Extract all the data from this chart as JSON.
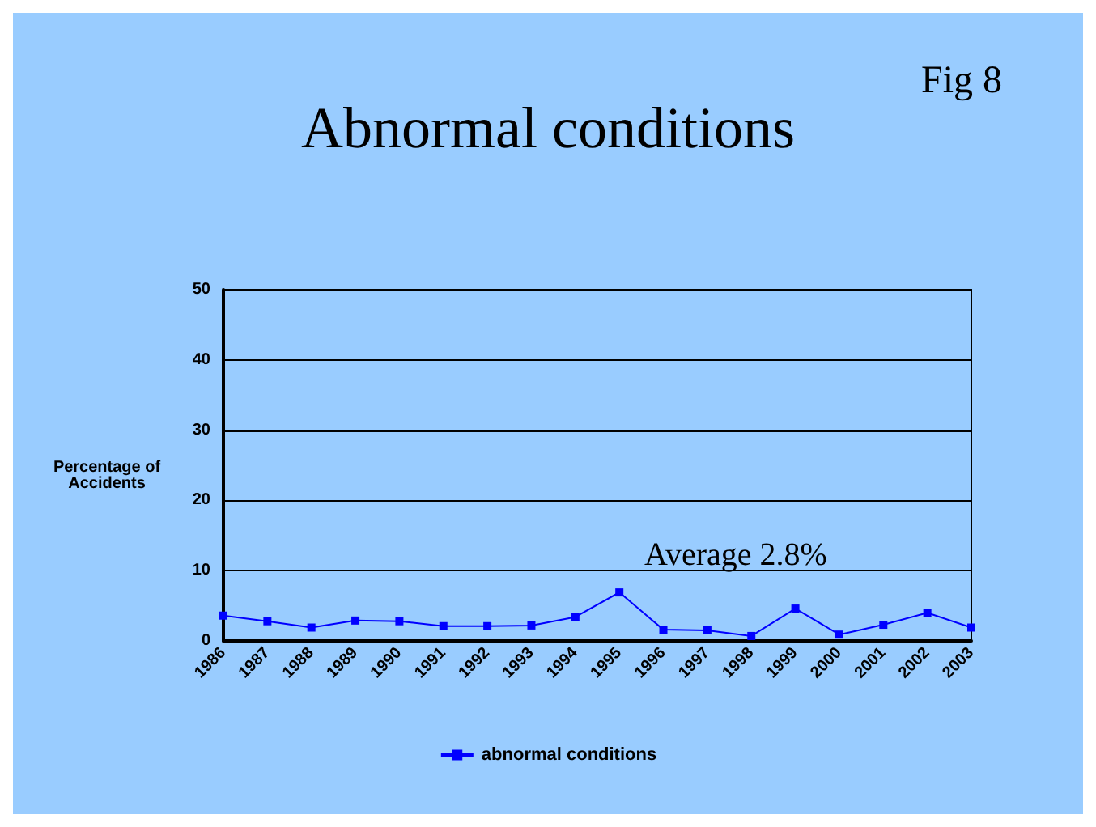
{
  "chart_data": {
    "type": "line",
    "title": "Abnormal conditions",
    "ylabel": "Percentage of\nAccidents",
    "annotations": [
      "Fig 8",
      "Average 2.8%"
    ],
    "categories": [
      "1986",
      "1987",
      "1988",
      "1989",
      "1990",
      "1991",
      "1992",
      "1993",
      "1994",
      "1995",
      "1996",
      "1997",
      "1998",
      "1999",
      "2000",
      "2001",
      "2002",
      "2003"
    ],
    "series": [
      {
        "name": "abnormal conditions",
        "color": "#0000ff",
        "values": [
          3.6,
          2.8,
          1.9,
          2.9,
          2.8,
          2.1,
          2.1,
          2.2,
          3.4,
          6.9,
          1.6,
          1.5,
          0.7,
          4.6,
          0.9,
          2.3,
          4.0,
          1.9
        ]
      }
    ],
    "ylim": [
      0,
      50
    ],
    "yticks": [
      0,
      10,
      20,
      30,
      40,
      50
    ],
    "grid": "y",
    "legend": "bottom",
    "marker": "square",
    "line_style": "solid"
  }
}
